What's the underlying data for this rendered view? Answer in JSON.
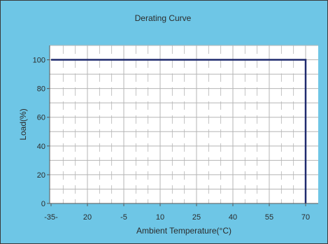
{
  "chart_data": {
    "type": "line",
    "title": "Derating Curve",
    "xlabel": "Ambient Temperature(°C)",
    "ylabel": "Load(%)",
    "x_tick_labels": [
      "-35-",
      "20",
      "-5",
      "10",
      "25",
      "40",
      "55",
      "70"
    ],
    "y_ticks": [
      0,
      20,
      40,
      60,
      80,
      100
    ],
    "ylim": [
      0,
      110
    ],
    "x_tick_count": 8,
    "grid": true,
    "series": [
      {
        "points": [
          {
            "x_index": 0,
            "y": 100
          },
          {
            "x_index": 7,
            "y": 100
          },
          {
            "x_index": 7,
            "y": 0
          }
        ],
        "color": "#1f2a6e"
      }
    ],
    "colors": {
      "background": "#6ec6e6",
      "plot_area": "#ffffff",
      "grid": "#b5b5b5",
      "curve": "#1f2a6e"
    }
  }
}
